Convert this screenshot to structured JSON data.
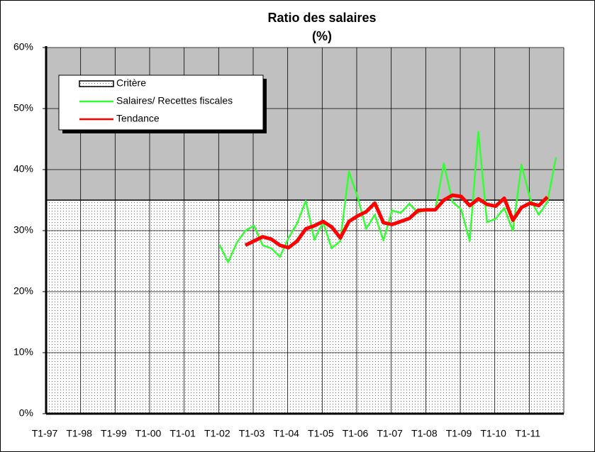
{
  "chart_data": {
    "type": "line",
    "title": "Ratio des salaires",
    "subtitle": "(%)",
    "categories": [
      "T1-97",
      null,
      null,
      null,
      "T1-98",
      null,
      null,
      null,
      "T1-99",
      null,
      null,
      null,
      "T1-00",
      null,
      null,
      null,
      "T1-01",
      null,
      null,
      null,
      "T1-02",
      null,
      null,
      null,
      "T1-03",
      null,
      null,
      null,
      "T1-04",
      null,
      null,
      null,
      "T1-05",
      null,
      null,
      null,
      "T1-06",
      null,
      null,
      null,
      "T1-07",
      null,
      null,
      null,
      "T1-08",
      null,
      null,
      null,
      "T1-09",
      null,
      null,
      null,
      "T1-10",
      null,
      null,
      null,
      "T1-11",
      null,
      null,
      null
    ],
    "series": [
      {
        "name": "Critère",
        "type": "area",
        "color": "#000000",
        "values": [
          35,
          35,
          35,
          35,
          35,
          35,
          35,
          35,
          35,
          35,
          35,
          35,
          35,
          35,
          35,
          35,
          35,
          35,
          35,
          35,
          35,
          35,
          35,
          35,
          35,
          35,
          35,
          35,
          35,
          35,
          35,
          35,
          35,
          35,
          35,
          35,
          35,
          35,
          35,
          35,
          35,
          35,
          35,
          35,
          35,
          35,
          35,
          35,
          35,
          35,
          35,
          35,
          35,
          35,
          35,
          35,
          35,
          35,
          35,
          35
        ]
      },
      {
        "name": "Salaires/ Recettes fiscales",
        "color": "#33ff33",
        "values": [
          null,
          null,
          null,
          null,
          null,
          null,
          null,
          null,
          null,
          null,
          null,
          null,
          null,
          null,
          null,
          null,
          null,
          null,
          null,
          null,
          27.7,
          24.8,
          28,
          30,
          30.8,
          27.6,
          27.1,
          25.7,
          28.8,
          31.2,
          34.9,
          28.5,
          31.4,
          27.1,
          28.3,
          39.7,
          35.5,
          30.3,
          32.6,
          28.4,
          33.3,
          32.9,
          34.4,
          32.9,
          33.6,
          33.3,
          41,
          34.7,
          33.5,
          28.3,
          46.2,
          31.4,
          31.9,
          33.7,
          30,
          40.8,
          35.2,
          32.6,
          34.7,
          42
        ]
      },
      {
        "name": "Tendance",
        "color": "#ff0000",
        "values": [
          null,
          null,
          null,
          null,
          null,
          null,
          null,
          null,
          null,
          null,
          null,
          null,
          null,
          null,
          null,
          null,
          null,
          null,
          null,
          null,
          null,
          null,
          null,
          27.6,
          28.3,
          29,
          28.6,
          27.6,
          27.2,
          28.3,
          30.3,
          30.8,
          31.5,
          30.6,
          28.8,
          31.5,
          32.4,
          33.1,
          34.5,
          31.3,
          31,
          31.5,
          32,
          33.3,
          33.4,
          33.4,
          35,
          35.8,
          35.6,
          34.1,
          35.2,
          34.3,
          34,
          35.3,
          31.7,
          33.8,
          34.5,
          34.1,
          35.5,
          null
        ]
      }
    ],
    "ylim": [
      0,
      60
    ],
    "yticks": [
      {
        "value": 0,
        "label": "0%"
      },
      {
        "value": 10,
        "label": "10%"
      },
      {
        "value": 20,
        "label": "20%"
      },
      {
        "value": 30,
        "label": "30%"
      },
      {
        "value": 40,
        "label": "40%"
      },
      {
        "value": 50,
        "label": "50%"
      },
      {
        "value": 60,
        "label": "60%"
      }
    ],
    "grid": true,
    "legend": "upper left"
  }
}
